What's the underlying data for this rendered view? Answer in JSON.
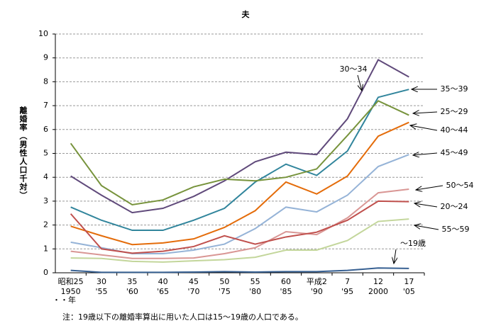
{
  "chart_data": {
    "type": "line",
    "title": "夫",
    "ylabel": "離婚率（男性人口千対）",
    "xlabel": "・・年",
    "note": "注：19歳以下の離婚率算出に用いた人口は15～19歳の人口である。",
    "categories": [
      "昭和25",
      "30",
      "35",
      "40",
      "45",
      "50",
      "55",
      "60",
      "平成2",
      "7",
      "12",
      "17"
    ],
    "categories_year": [
      "1950",
      "'55",
      "'60",
      "'65",
      "'70",
      "'75",
      "'80",
      "'85",
      "'90",
      "'95",
      "2000",
      "'05"
    ],
    "ylim": [
      0,
      10
    ],
    "yticks": [
      0,
      1,
      2,
      3,
      4,
      5,
      6,
      7,
      8,
      9,
      10
    ],
    "grid": true,
    "series": [
      {
        "name": "30～34",
        "color": "#604a7b",
        "values": [
          4.05,
          3.25,
          2.52,
          2.7,
          3.2,
          3.85,
          4.65,
          5.05,
          4.95,
          6.45,
          8.92,
          8.2
        ]
      },
      {
        "name": "35～39",
        "color": "#31859c",
        "values": [
          2.75,
          2.2,
          1.78,
          1.78,
          2.2,
          2.7,
          3.8,
          4.55,
          4.08,
          5.1,
          7.35,
          7.68
        ]
      },
      {
        "name": "25～29",
        "color": "#77933c",
        "values": [
          5.42,
          3.65,
          2.85,
          3.05,
          3.6,
          3.92,
          3.85,
          4.0,
          4.35,
          5.75,
          7.2,
          6.6
        ]
      },
      {
        "name": "40～44",
        "color": "#e46c0a",
        "values": [
          1.95,
          1.55,
          1.18,
          1.25,
          1.42,
          1.9,
          2.6,
          3.8,
          3.3,
          4.05,
          5.72,
          6.3
        ]
      },
      {
        "name": "45～49",
        "color": "#95b3d7",
        "values": [
          1.28,
          1.05,
          0.8,
          0.8,
          0.95,
          1.2,
          1.85,
          2.75,
          2.55,
          3.25,
          4.45,
          4.95
        ]
      },
      {
        "name": "50～54",
        "color": "#d99694",
        "values": [
          0.9,
          0.75,
          0.6,
          0.6,
          0.62,
          0.8,
          1.05,
          1.72,
          1.6,
          2.3,
          3.35,
          3.5
        ]
      },
      {
        "name": "20～24",
        "color": "#c0504d",
        "values": [
          2.47,
          1.0,
          0.82,
          0.9,
          1.1,
          1.55,
          1.2,
          1.5,
          1.7,
          2.2,
          3.0,
          2.98
        ]
      },
      {
        "name": "55～59",
        "color": "#c3d69b",
        "values": [
          0.62,
          0.6,
          0.48,
          0.45,
          0.5,
          0.55,
          0.65,
          0.95,
          0.95,
          1.35,
          2.15,
          2.25
        ]
      },
      {
        "name": "～19歳",
        "color": "#376092",
        "values": [
          0.1,
          0.02,
          0.02,
          0.02,
          0.03,
          0.05,
          0.03,
          0.05,
          0.05,
          0.1,
          0.2,
          0.18
        ]
      }
    ]
  }
}
